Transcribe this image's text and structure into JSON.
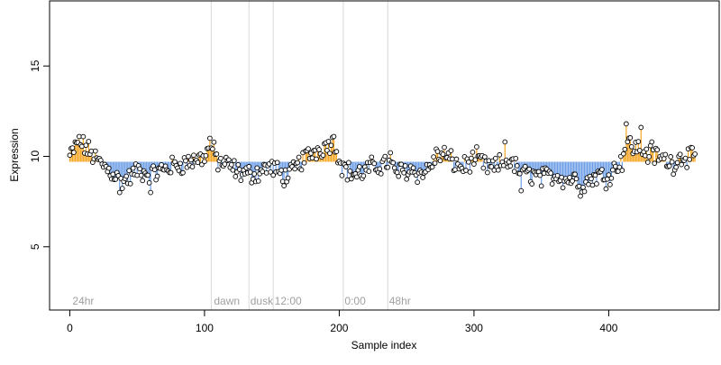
{
  "chart_data": {
    "type": "scatter",
    "title": "",
    "xlabel": "Sample index",
    "ylabel": "Expression",
    "xlim": [
      -15,
      482
    ],
    "ylim": [
      1.5,
      18.6
    ],
    "x_ticks": [
      0,
      100,
      200,
      300,
      400
    ],
    "y_ticks": [
      5,
      10,
      15
    ],
    "grid": false,
    "legend": "none",
    "baseline": 9.7,
    "colors": {
      "above": "#f5a623",
      "below": "#6f9fe6",
      "point_fill": "#ffffff",
      "point_stroke": "#000000",
      "divider": "#d8d8d8",
      "section_label": "#a0a0a0"
    },
    "sections": [
      {
        "label": "24hr",
        "x": 2
      },
      {
        "label": "dawn",
        "x": 107
      },
      {
        "label": "dusk",
        "x": 134
      },
      {
        "label": "12:00",
        "x": 152
      },
      {
        "label": "0:00",
        "x": 204
      },
      {
        "label": "48hr",
        "x": 237
      }
    ],
    "dividers": [
      105,
      133,
      151,
      203,
      236
    ],
    "anchors": [
      [
        0,
        10.0
      ],
      [
        5,
        10.6
      ],
      [
        9,
        10.7
      ],
      [
        14,
        10.3
      ],
      [
        20,
        9.8
      ],
      [
        28,
        9.3
      ],
      [
        33,
        9.0
      ],
      [
        38,
        8.6
      ],
      [
        44,
        8.8
      ],
      [
        50,
        9.2
      ],
      [
        56,
        9.1
      ],
      [
        62,
        9.0
      ],
      [
        70,
        9.3
      ],
      [
        78,
        9.5
      ],
      [
        85,
        9.6
      ],
      [
        92,
        9.8
      ],
      [
        98,
        9.9
      ],
      [
        102,
        10.2
      ],
      [
        104,
        10.7
      ],
      [
        106,
        10.4
      ],
      [
        110,
        9.7
      ],
      [
        118,
        9.5
      ],
      [
        126,
        9.1
      ],
      [
        134,
        9.0
      ],
      [
        140,
        9.1
      ],
      [
        146,
        9.4
      ],
      [
        152,
        9.3
      ],
      [
        158,
        8.9
      ],
      [
        164,
        9.0
      ],
      [
        170,
        9.6
      ],
      [
        176,
        10.0
      ],
      [
        182,
        10.3
      ],
      [
        188,
        10.5
      ],
      [
        194,
        10.8
      ],
      [
        198,
        10.4
      ],
      [
        202,
        9.5
      ],
      [
        206,
        9.2
      ],
      [
        212,
        9.0
      ],
      [
        218,
        9.1
      ],
      [
        224,
        9.4
      ],
      [
        230,
        9.5
      ],
      [
        236,
        9.7
      ],
      [
        242,
        9.1
      ],
      [
        248,
        9.2
      ],
      [
        254,
        9.3
      ],
      [
        260,
        9.0
      ],
      [
        266,
        9.3
      ],
      [
        272,
        10.0
      ],
      [
        278,
        10.1
      ],
      [
        284,
        9.7
      ],
      [
        290,
        9.4
      ],
      [
        296,
        9.6
      ],
      [
        302,
        9.9
      ],
      [
        308,
        9.5
      ],
      [
        314,
        9.3
      ],
      [
        320,
        9.6
      ],
      [
        326,
        9.8
      ],
      [
        332,
        9.3
      ],
      [
        338,
        9.0
      ],
      [
        344,
        9.0
      ],
      [
        350,
        8.8
      ],
      [
        356,
        8.9
      ],
      [
        362,
        9.0
      ],
      [
        368,
        8.7
      ],
      [
        374,
        8.8
      ],
      [
        380,
        8.5
      ],
      [
        386,
        8.7
      ],
      [
        392,
        9.0
      ],
      [
        398,
        8.8
      ],
      [
        404,
        9.3
      ],
      [
        410,
        9.8
      ],
      [
        413,
        10.9
      ],
      [
        418,
        10.5
      ],
      [
        424,
        10.4
      ],
      [
        430,
        10.1
      ],
      [
        436,
        10.0
      ],
      [
        442,
        9.8
      ],
      [
        448,
        9.6
      ],
      [
        454,
        10.0
      ],
      [
        460,
        10.0
      ],
      [
        463,
        9.8
      ]
    ],
    "outliers": [
      [
        7,
        11.1
      ],
      [
        37,
        8.0
      ],
      [
        60,
        8.0
      ],
      [
        104,
        11.0
      ],
      [
        196,
        11.1
      ],
      [
        238,
        10.2
      ],
      [
        323,
        10.8
      ],
      [
        335,
        8.1
      ],
      [
        379,
        7.8
      ],
      [
        413,
        11.8
      ],
      [
        424,
        11.6
      ],
      [
        432,
        10.8
      ]
    ],
    "n_points": 465
  }
}
